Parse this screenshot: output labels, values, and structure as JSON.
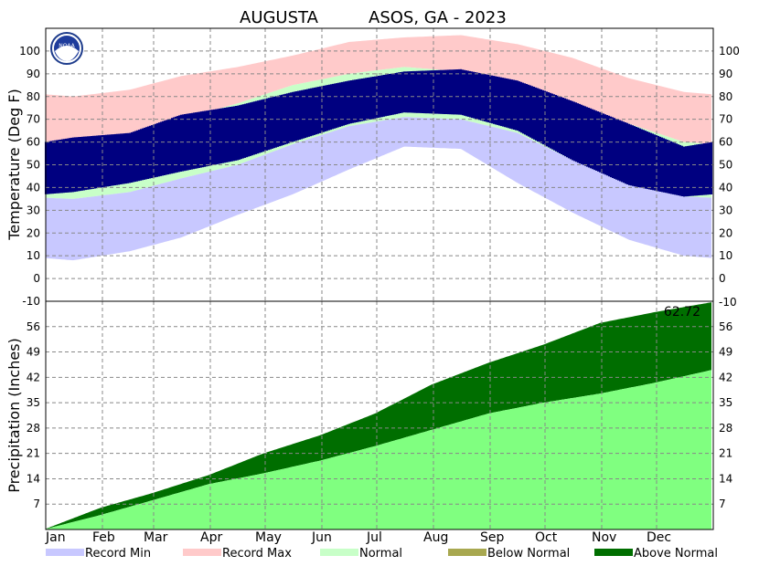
{
  "title_left": "AUGUSTA",
  "title_right": "ASOS, GA - 2023",
  "logo_text": "NOAA",
  "colors": {
    "record_min": "#c8c8ff",
    "record_max": "#ffcaca",
    "normal": "#c8ffc8",
    "observed": "#000080",
    "below_normal": "#a8a850",
    "above_normal": "#006e00",
    "normal_precip": "#80ff80",
    "grid": "#888888"
  },
  "chart_data": [
    {
      "type": "area",
      "name": "temperature",
      "ylabel": "Temperature (Deg F)",
      "ylim": [
        -10,
        110
      ],
      "yticks": [
        0,
        10,
        20,
        30,
        40,
        50,
        60,
        70,
        80,
        90,
        100
      ],
      "ytick_labels": [
        "0",
        "10",
        "20",
        "30",
        "40",
        "50",
        "60",
        "70",
        "80",
        "90",
        "100"
      ],
      "months": [
        "Jan",
        "Feb",
        "Mar",
        "Apr",
        "May",
        "Jun",
        "Jul",
        "Aug",
        "Sep",
        "Oct",
        "Nov",
        "Dec"
      ],
      "grid": true,
      "monthly": {
        "record_max": [
          80,
          83,
          89,
          93,
          98,
          104,
          106,
          107,
          103,
          97,
          88,
          82
        ],
        "normal_high": [
          58,
          62,
          70,
          77,
          85,
          90,
          93,
          91,
          86,
          77,
          68,
          60
        ],
        "normal_low": [
          35,
          38,
          44,
          50,
          59,
          67,
          71,
          70,
          64,
          52,
          41,
          36
        ],
        "record_min": [
          8,
          12,
          18,
          28,
          37,
          48,
          58,
          57,
          42,
          29,
          17,
          10
        ],
        "observed_high": [
          62,
          64,
          72,
          76,
          82,
          87,
          91,
          92,
          87,
          78,
          68,
          58
        ],
        "observed_low": [
          38,
          42,
          47,
          52,
          60,
          68,
          73,
          72,
          65,
          52,
          41,
          36
        ]
      }
    },
    {
      "type": "area",
      "name": "precipitation",
      "ylabel": "Precipitation (Inches)",
      "ylim": [
        0,
        63
      ],
      "yticks": [
        7,
        14,
        21,
        28,
        35,
        42,
        49,
        56
      ],
      "ytick_labels": [
        "7",
        "14",
        "21",
        "28",
        "35",
        "42",
        "49",
        "56"
      ],
      "right_extra_tick": "-10",
      "annotation": "62.72",
      "grid": true,
      "monthly_end": {
        "observed_cumulative": [
          6,
          10,
          15,
          21,
          26,
          32,
          40,
          46,
          51,
          57,
          60,
          62.72
        ],
        "normal_cumulative": [
          4,
          8,
          12.5,
          15.5,
          19,
          23,
          27.5,
          32,
          35,
          37.5,
          40.5,
          44
        ]
      }
    }
  ],
  "legend": [
    {
      "label": "Record Min",
      "color": "#c8c8ff"
    },
    {
      "label": "Record Max",
      "color": "#ffcaca"
    },
    {
      "label": "Normal",
      "color": "#c8ffc8"
    },
    {
      "label": "Below Normal",
      "color": "#a8a850"
    },
    {
      "label": "Above Normal",
      "color": "#006e00"
    }
  ]
}
